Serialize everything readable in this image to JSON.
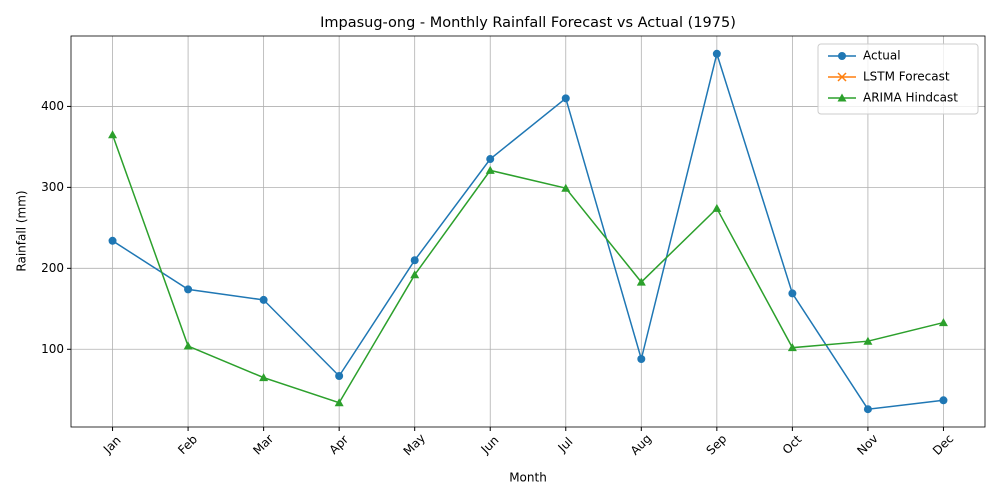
{
  "chart_data": {
    "type": "line",
    "title": "Impasug-ong - Monthly Rainfall Forecast vs Actual (1975)",
    "x_label": "Month",
    "y_label": "Rainfall (mm)",
    "categories": [
      "Jan",
      "Feb",
      "Mar",
      "Apr",
      "May",
      "Jun",
      "Jul",
      "Aug",
      "Sep",
      "Oct",
      "Nov",
      "Dec"
    ],
    "series": [
      {
        "name": "Actual",
        "color": "#1f77b4",
        "marker": "circle",
        "values": [
          234,
          174,
          161,
          67,
          210,
          335,
          410,
          88,
          465,
          169,
          26,
          37
        ]
      },
      {
        "name": "LSTM Forecast",
        "color": "#ff7f0e",
        "marker": "x",
        "values": [
          null,
          null,
          null,
          null,
          null,
          null,
          null,
          null,
          null,
          null,
          null,
          null
        ]
      },
      {
        "name": "ARIMA Hindcast",
        "color": "#2ca02c",
        "marker": "triangle",
        "values": [
          365,
          104,
          65,
          34,
          192,
          321,
          299,
          183,
          274,
          102,
          110,
          133
        ]
      }
    ],
    "ylim": [
      4,
      487
    ],
    "yticks": [
      100,
      200,
      300,
      400
    ],
    "grid": true,
    "legend": "upper right"
  }
}
